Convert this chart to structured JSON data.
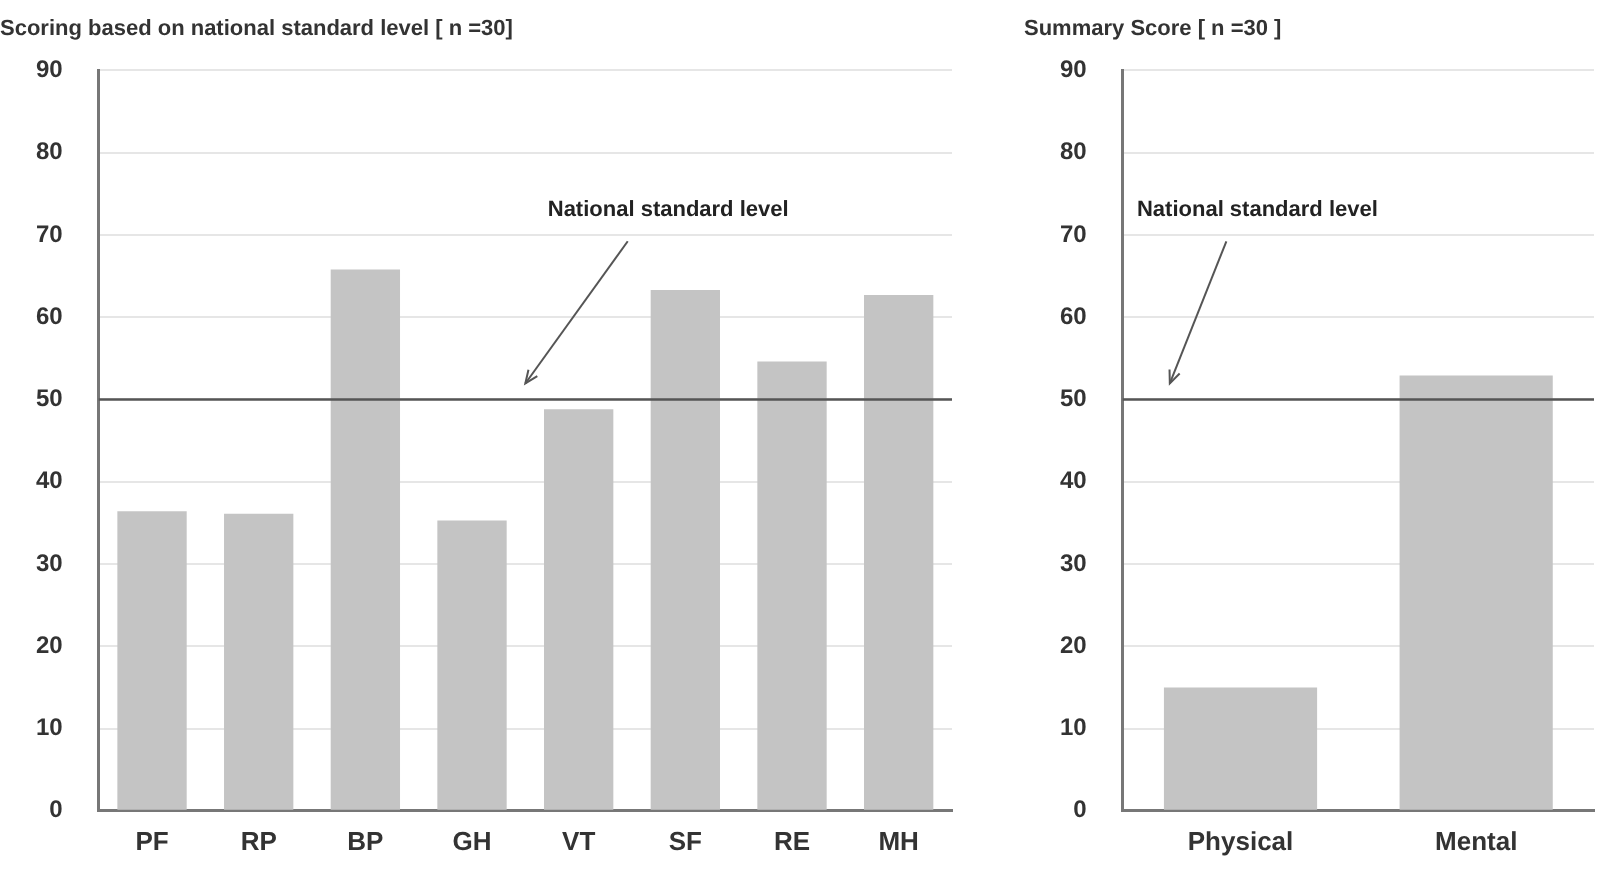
{
  "chart_data": [
    {
      "type": "bar",
      "title": "Scoring based on national standard level [ n =30]",
      "categories": [
        "PF",
        "RP",
        "BP",
        "GH",
        "VT",
        "SF",
        "RE",
        "MH"
      ],
      "values": [
        36.4,
        36.1,
        65.8,
        35.3,
        48.8,
        63.3,
        54.6,
        62.7
      ],
      "color": "#c4c4c4",
      "ylim": [
        0,
        90
      ],
      "yticks": [
        0,
        10,
        20,
        30,
        40,
        50,
        60,
        70,
        80,
        90
      ],
      "grid": "y",
      "ref_lines": [
        {
          "axis": "y",
          "value": 50,
          "label": "National standard level"
        }
      ]
    },
    {
      "type": "bar",
      "title": "Summary Score [ n =30 ]",
      "categories": [
        "Physical",
        "Mental"
      ],
      "values": [
        15.0,
        52.9
      ],
      "color": "#c4c4c4",
      "ylim": [
        0,
        90
      ],
      "yticks": [
        0,
        10,
        20,
        30,
        40,
        50,
        60,
        70,
        80,
        90
      ],
      "grid": "y",
      "ref_lines": [
        {
          "axis": "y",
          "value": 50,
          "label": "National standard level"
        }
      ]
    }
  ]
}
